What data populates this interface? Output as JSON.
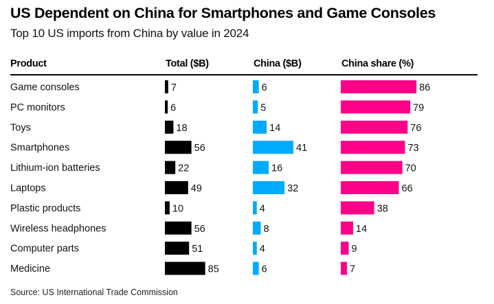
{
  "header": {
    "title": "US Dependent on China for Smartphones and Game Consoles",
    "subtitle": "Top 10 US imports from China by value in 2024"
  },
  "columns": {
    "product": "Product",
    "total": "Total ($B)",
    "china": "China ($B)",
    "share": "China share (%)"
  },
  "footer": {
    "source": "Source: US International Trade Commission"
  },
  "colors": {
    "total": "#000000",
    "china": "#00aaff",
    "share": "#ff0088"
  },
  "chart_data": {
    "type": "table",
    "title": "US Dependent on China for Smartphones and Game Consoles",
    "subtitle": "Top 10 US imports from China by value in 2024",
    "categories": [
      "Game consoles",
      "PC monitors",
      "Toys",
      "Smartphones",
      "Lithium-ion batteries",
      "Laptops",
      "Plastic products",
      "Wireless headphones",
      "Computer parts",
      "Medicine"
    ],
    "series": [
      {
        "name": "Total ($B)",
        "values": [
          7,
          6,
          18,
          56,
          22,
          49,
          10,
          56,
          51,
          85
        ]
      },
      {
        "name": "China ($B)",
        "values": [
          6,
          5,
          14,
          41,
          16,
          32,
          4,
          8,
          4,
          6
        ]
      },
      {
        "name": "China share (%)",
        "values": [
          86,
          79,
          76,
          73,
          70,
          66,
          38,
          14,
          9,
          7
        ]
      }
    ],
    "source": "Source: US International Trade Commission",
    "grid": false,
    "legend": "none"
  }
}
